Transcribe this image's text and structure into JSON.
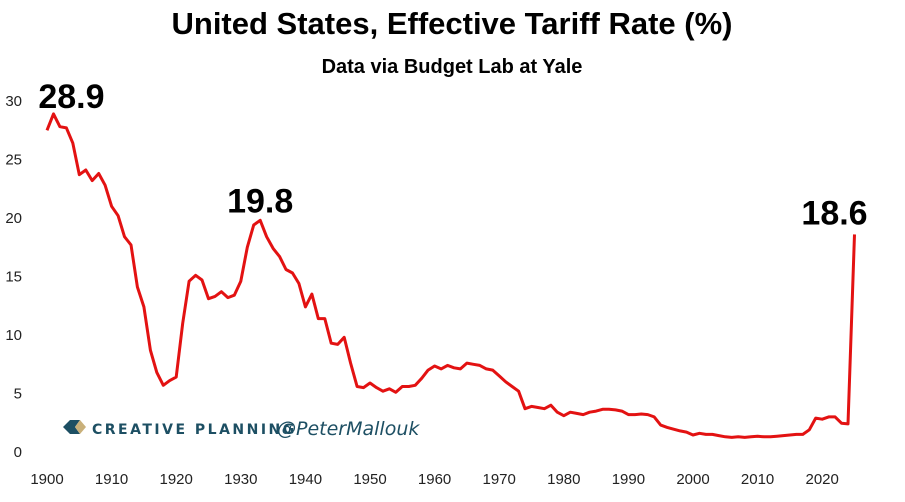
{
  "chart_data": {
    "type": "line",
    "title": "United States, Effective Tariff Rate (%)",
    "subtitle": "Data via Budget Lab at Yale",
    "xlabel": "",
    "ylabel": "",
    "xlim": [
      1900,
      2025
    ],
    "ylim": [
      0,
      30
    ],
    "grid": false,
    "x_ticks": [
      "1900",
      "1910",
      "1920",
      "1930",
      "1940",
      "1950",
      "1960",
      "1970",
      "1980",
      "1990",
      "2000",
      "2010",
      "2020"
    ],
    "y_ticks": [
      "0",
      "5",
      "10",
      "15",
      "20",
      "25",
      "30"
    ],
    "series": [
      {
        "name": "Effective Tariff Rate (%)",
        "color": "#e31212",
        "start_year": 1900,
        "values": [
          27.5,
          28.9,
          27.8,
          27.7,
          26.4,
          23.7,
          24.1,
          23.2,
          23.8,
          22.8,
          21.0,
          20.2,
          18.4,
          17.7,
          14.1,
          12.4,
          8.7,
          6.8,
          5.7,
          6.1,
          6.4,
          11.0,
          14.6,
          15.1,
          14.7,
          13.1,
          13.3,
          13.7,
          13.2,
          13.4,
          14.6,
          17.5,
          19.4,
          19.8,
          18.4,
          17.4,
          16.7,
          15.6,
          15.3,
          14.4,
          12.4,
          13.5,
          11.4,
          11.4,
          9.3,
          9.2,
          9.8,
          7.6,
          5.6,
          5.5,
          5.9,
          5.5,
          5.2,
          5.4,
          5.1,
          5.6,
          5.6,
          5.7,
          6.3,
          7.0,
          7.35,
          7.1,
          7.4,
          7.2,
          7.1,
          7.6,
          7.5,
          7.4,
          7.1,
          7.0,
          6.5,
          6.0,
          5.6,
          5.2,
          3.7,
          3.9,
          3.8,
          3.7,
          4.0,
          3.4,
          3.1,
          3.4,
          3.3,
          3.2,
          3.4,
          3.5,
          3.65,
          3.65,
          3.6,
          3.5,
          3.2,
          3.2,
          3.25,
          3.2,
          3.0,
          2.3,
          2.1,
          1.95,
          1.8,
          1.7,
          1.45,
          1.6,
          1.5,
          1.5,
          1.4,
          1.3,
          1.25,
          1.3,
          1.25,
          1.3,
          1.35,
          1.3,
          1.3,
          1.35,
          1.4,
          1.45,
          1.5,
          1.5,
          1.9,
          2.9,
          2.8,
          3.0,
          3.0,
          2.45,
          2.4,
          18.6
        ]
      }
    ],
    "annotations": [
      {
        "text": "28.9",
        "year": 1901,
        "value": 28.9
      },
      {
        "text": "19.8",
        "year": 1933,
        "value": 19.8
      },
      {
        "text": "18.6",
        "year": 2025,
        "value": 18.6
      }
    ]
  },
  "branding": {
    "company": "CREATIVE PLANNING",
    "handle": "@PeterMallouk",
    "color": "#1d4f63",
    "logo_accent": "#c9b07a"
  }
}
